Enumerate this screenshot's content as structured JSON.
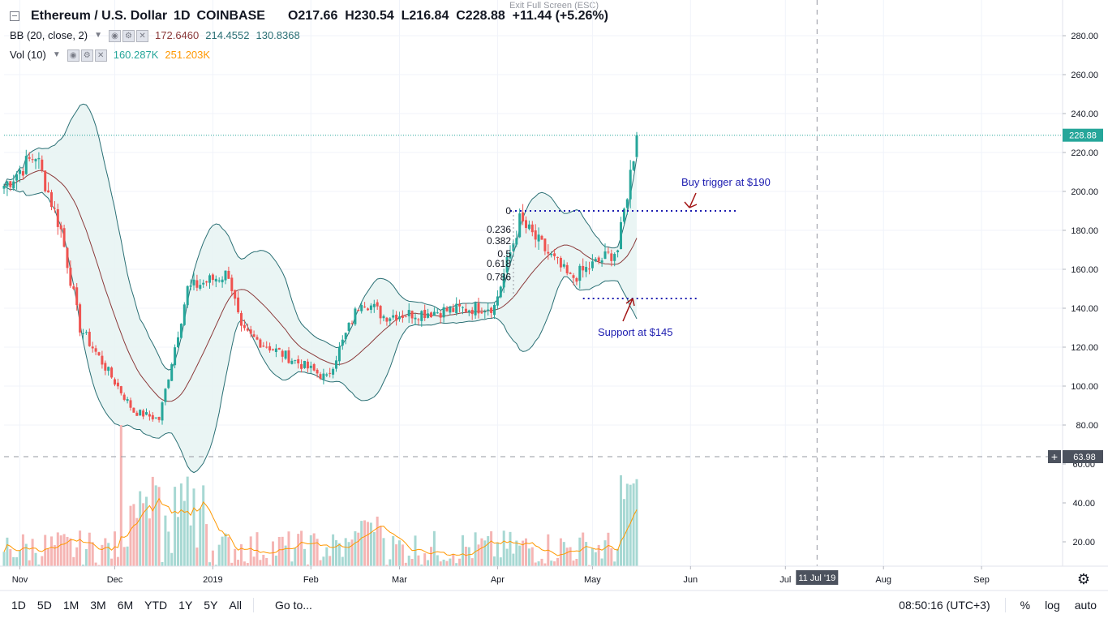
{
  "header": {
    "exit_fullscreen": "Exit Full Screen (ESC)",
    "symbol_title": "Ethereum / U.S. Dollar",
    "interval": "1D",
    "exchange": "COINBASE",
    "ohlc": {
      "o_label": "O",
      "o": "217.66",
      "h_label": "H",
      "h": "230.54",
      "l_label": "L",
      "l": "216.84",
      "c_label": "C",
      "c": "228.88",
      "change": "+11.44 (+5.26%)"
    }
  },
  "indicators": {
    "bb": {
      "label": "BB (20, close, 2)",
      "basis": "172.6460",
      "upper": "214.4552",
      "lower": "130.8368"
    },
    "vol": {
      "label": "Vol (10)",
      "volume": "160.287K",
      "ma": "251.203K"
    }
  },
  "annotations": {
    "buy_trigger": "Buy trigger at $190",
    "support": "Support at $145",
    "fib_levels": [
      "0",
      "0.236",
      "0.382",
      "0.5",
      "0.618",
      "0.786"
    ]
  },
  "price_axis": {
    "labels": [
      "280.00",
      "260.00",
      "240.00",
      "220.00",
      "200.00",
      "180.00",
      "160.00",
      "140.00",
      "120.00",
      "100.00",
      "80.00"
    ],
    "last_price_tag": "228.88",
    "crosshair_tag": "63.98"
  },
  "volume_axis": {
    "labels": [
      "60.00",
      "40.00",
      "20.00"
    ]
  },
  "time_axis": {
    "labels": [
      "Nov",
      "Dec",
      "2019",
      "Feb",
      "Mar",
      "Apr",
      "May",
      "Jun",
      "Jul",
      "Aug",
      "Sep"
    ],
    "crosshair_tag": "11 Jul '19"
  },
  "bottom_toolbar": {
    "ranges": [
      "1D",
      "5D",
      "1M",
      "3M",
      "6M",
      "YTD",
      "1Y",
      "5Y",
      "All"
    ],
    "goto": "Go to...",
    "clock": "08:50:16 (UTC+3)",
    "percent": "%",
    "log": "log",
    "auto": "auto"
  },
  "colors": {
    "up": "#26a69a",
    "down": "#ef5350",
    "bb_band": "#2a6f74",
    "bb_basis": "#8b3a3a",
    "bb_fill": "#e8f4f3",
    "vol_ma": "#ff9800",
    "annotation": "#1c1cb0",
    "arrow": "#a31515"
  },
  "chart_data": {
    "type": "candlestick",
    "title": "Ethereum / U.S. Dollar 1D COINBASE",
    "ylim": [
      62,
      292
    ],
    "x_range": [
      "2018-10-27",
      "2019-09-30"
    ],
    "key_points": [
      {
        "date": "2018-11-06",
        "close": 219
      },
      {
        "date": "2018-11-14",
        "close": 180
      },
      {
        "date": "2018-11-20",
        "close": 130
      },
      {
        "date": "2018-12-07",
        "close": 87
      },
      {
        "date": "2018-12-15",
        "close": 83
      },
      {
        "date": "2018-12-24",
        "close": 150
      },
      {
        "date": "2019-01-06",
        "close": 158
      },
      {
        "date": "2019-01-10",
        "close": 128
      },
      {
        "date": "2019-02-06",
        "close": 104
      },
      {
        "date": "2019-02-17",
        "close": 145
      },
      {
        "date": "2019-02-24",
        "close": 136
      },
      {
        "date": "2019-03-31",
        "close": 141
      },
      {
        "date": "2019-04-08",
        "close": 185
      },
      {
        "date": "2019-04-24",
        "close": 155
      },
      {
        "date": "2019-05-09",
        "close": 170
      },
      {
        "date": "2019-05-15",
        "close": 228.88
      }
    ],
    "bollinger": {
      "period": 20,
      "stddev": 2,
      "basis": 172.646,
      "upper": 214.4552,
      "lower": 130.8368
    },
    "volume": {
      "ma_period": 10,
      "last": "160.287K",
      "ma": "251.203K",
      "ylim": [
        0,
        85
      ]
    },
    "horizontal_levels": [
      {
        "label": "Buy trigger at $190",
        "value": 190
      },
      {
        "label": "Support at $145",
        "value": 145
      }
    ],
    "fibonacci": [
      {
        "level": "0",
        "price": 190
      },
      {
        "level": "0.236",
        "price": 180.5
      },
      {
        "level": "0.382",
        "price": 174.5
      },
      {
        "level": "0.5",
        "price": 168
      },
      {
        "level": "0.618",
        "price": 163
      },
      {
        "level": "0.786",
        "price": 156
      }
    ]
  }
}
